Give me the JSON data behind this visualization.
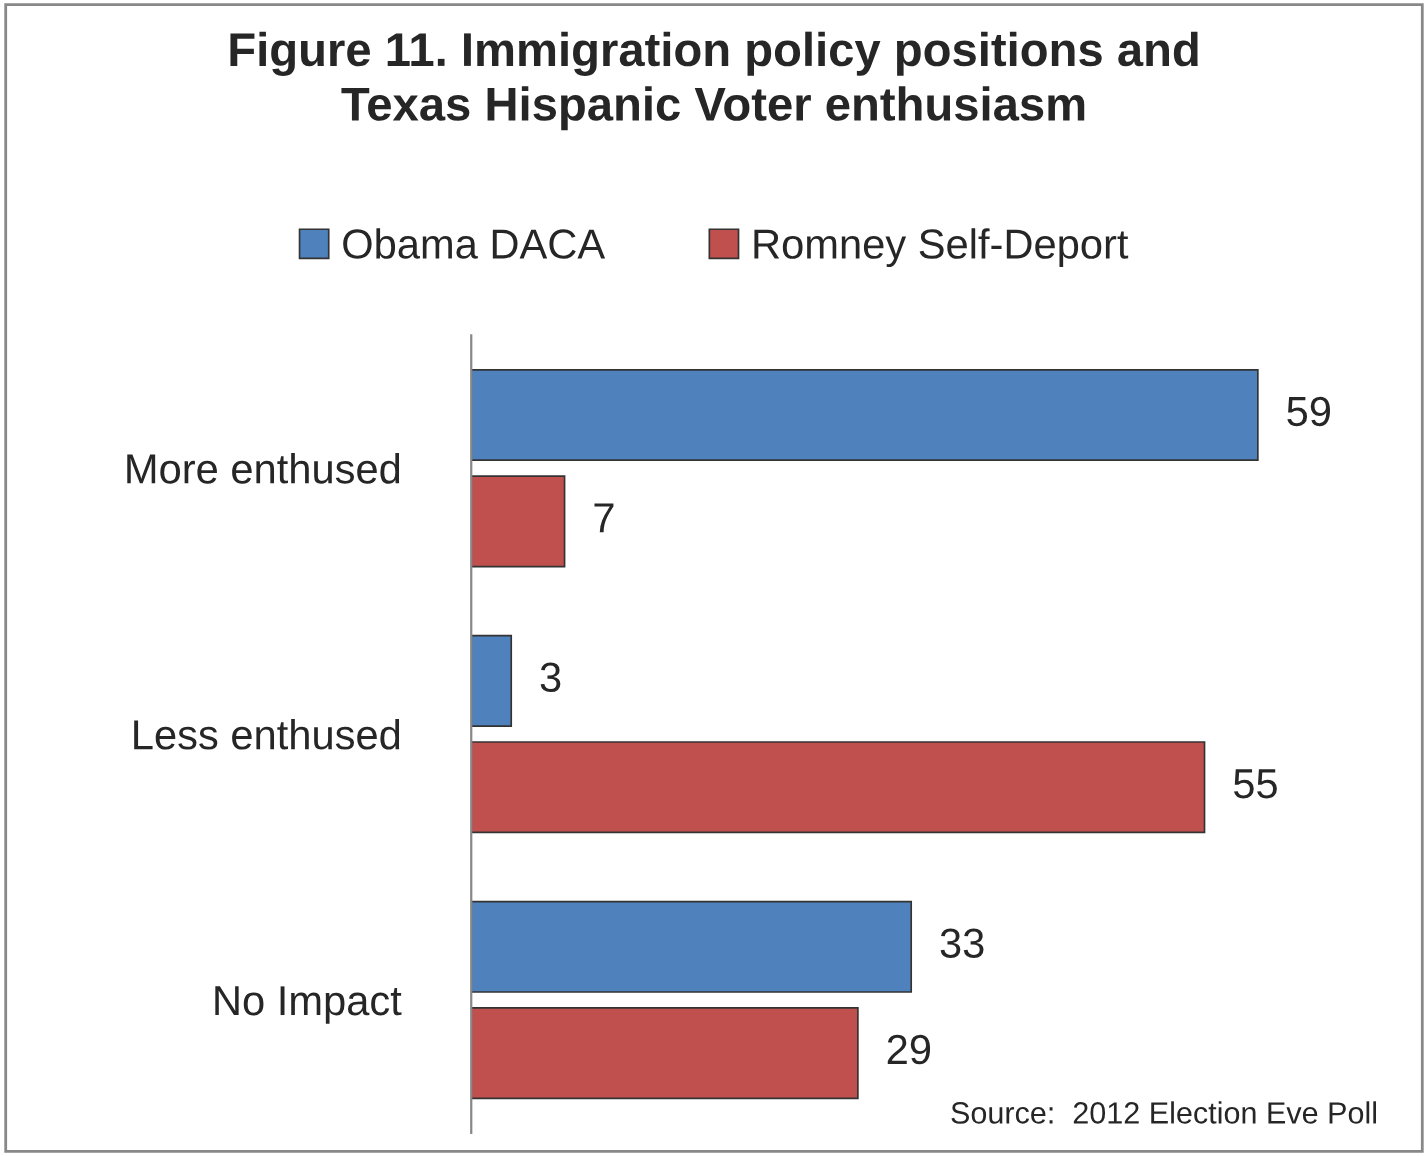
{
  "chart_data": {
    "type": "bar",
    "orientation": "horizontal",
    "title": "Figure 11. Immigration policy positions and\nTexas Hispanic Voter enthusiasm",
    "categories": [
      "More enthused",
      "Less enthused",
      "No Impact"
    ],
    "series": [
      {
        "name": "Obama DACA",
        "color": "#4f81bd",
        "values": [
          59,
          3,
          33
        ]
      },
      {
        "name": "Romney Self-Deport",
        "color": "#c0504d",
        "values": [
          7,
          55,
          29
        ]
      }
    ],
    "data_labels": true,
    "legend": "top",
    "grid": false,
    "annotations": [
      "Source:  2012 Election Eve Poll"
    ]
  }
}
